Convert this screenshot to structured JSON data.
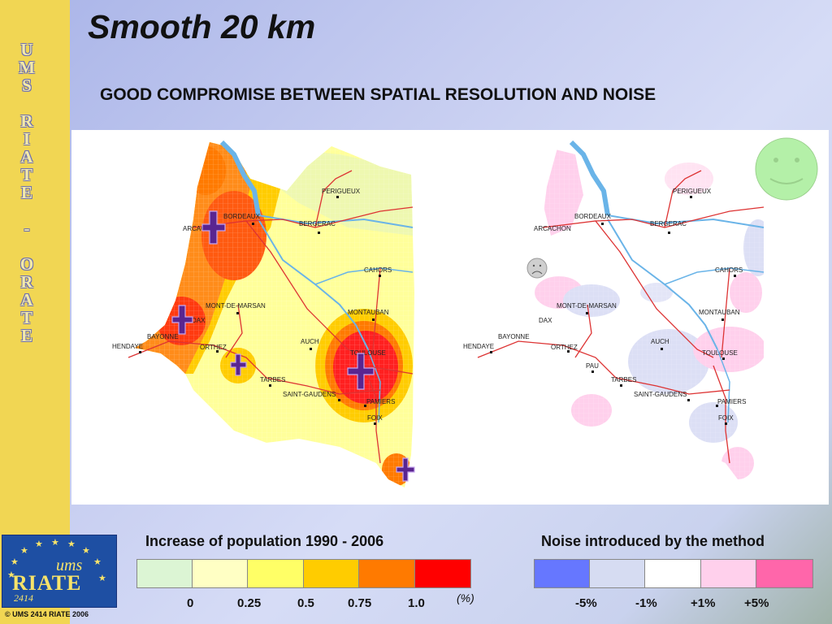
{
  "slide": {
    "title": "Smooth 20 km",
    "subtitle": "GOOD COMPROMISE BETWEEN SPATIAL RESOLUTION AND NOISE",
    "sidebar_text": "UMS RIATE - ORATE",
    "copyright": "© UMS 2414 RIATE 2006"
  },
  "logo": {
    "ums": "ums",
    "riate": "RIATE",
    "number": "2414"
  },
  "maps": {
    "left_cities": [
      "PERIGUEUX",
      "BORDEAUX",
      "BERGERAC",
      "ARCACHON",
      "CAHORS",
      "MONT-DE-MARSAN",
      "MONTAUBAN",
      "DAX",
      "BAYONNE",
      "AUCH",
      "HENDAYE",
      "ORTHEZ",
      "TOULOUSE",
      "TARBES",
      "SAINT-GAUDENS",
      "PAMIERS",
      "FOIX"
    ],
    "right_cities": [
      "PERIGUEUX",
      "BORDEAUX",
      "BERGERAC",
      "ARCACHON",
      "CAHORS",
      "MONT-DE-MARSAN",
      "MONTAUBAN",
      "DAX",
      "BAYONNE",
      "AUCH",
      "HENDAYE",
      "ORTHEZ",
      "TOULOUSE",
      "PAU",
      "TARBES",
      "SAINT-GAUDENS",
      "PAMIERS",
      "FOIX"
    ],
    "smiley_color": "#b4f0a8",
    "frown_color": "#d0d0d0"
  },
  "legend_population": {
    "title": "Increase of population 1990 - 2006",
    "colors": [
      "#dcf5d4",
      "#ffffc4",
      "#ffff66",
      "#ffcc00",
      "#ff7a00",
      "#ff0000"
    ],
    "ticks": [
      "0",
      "0.25",
      "0.5",
      "0.75",
      "1.0"
    ],
    "unit": "(%)"
  },
  "legend_noise": {
    "title": "Noise introduced by the method",
    "colors": [
      "#6677ff",
      "#d6dcf2",
      "#ffffff",
      "#ffd0ec",
      "#ff66aa"
    ],
    "ticks": [
      "-5%",
      "-1%",
      "+1%",
      "+5%"
    ]
  }
}
